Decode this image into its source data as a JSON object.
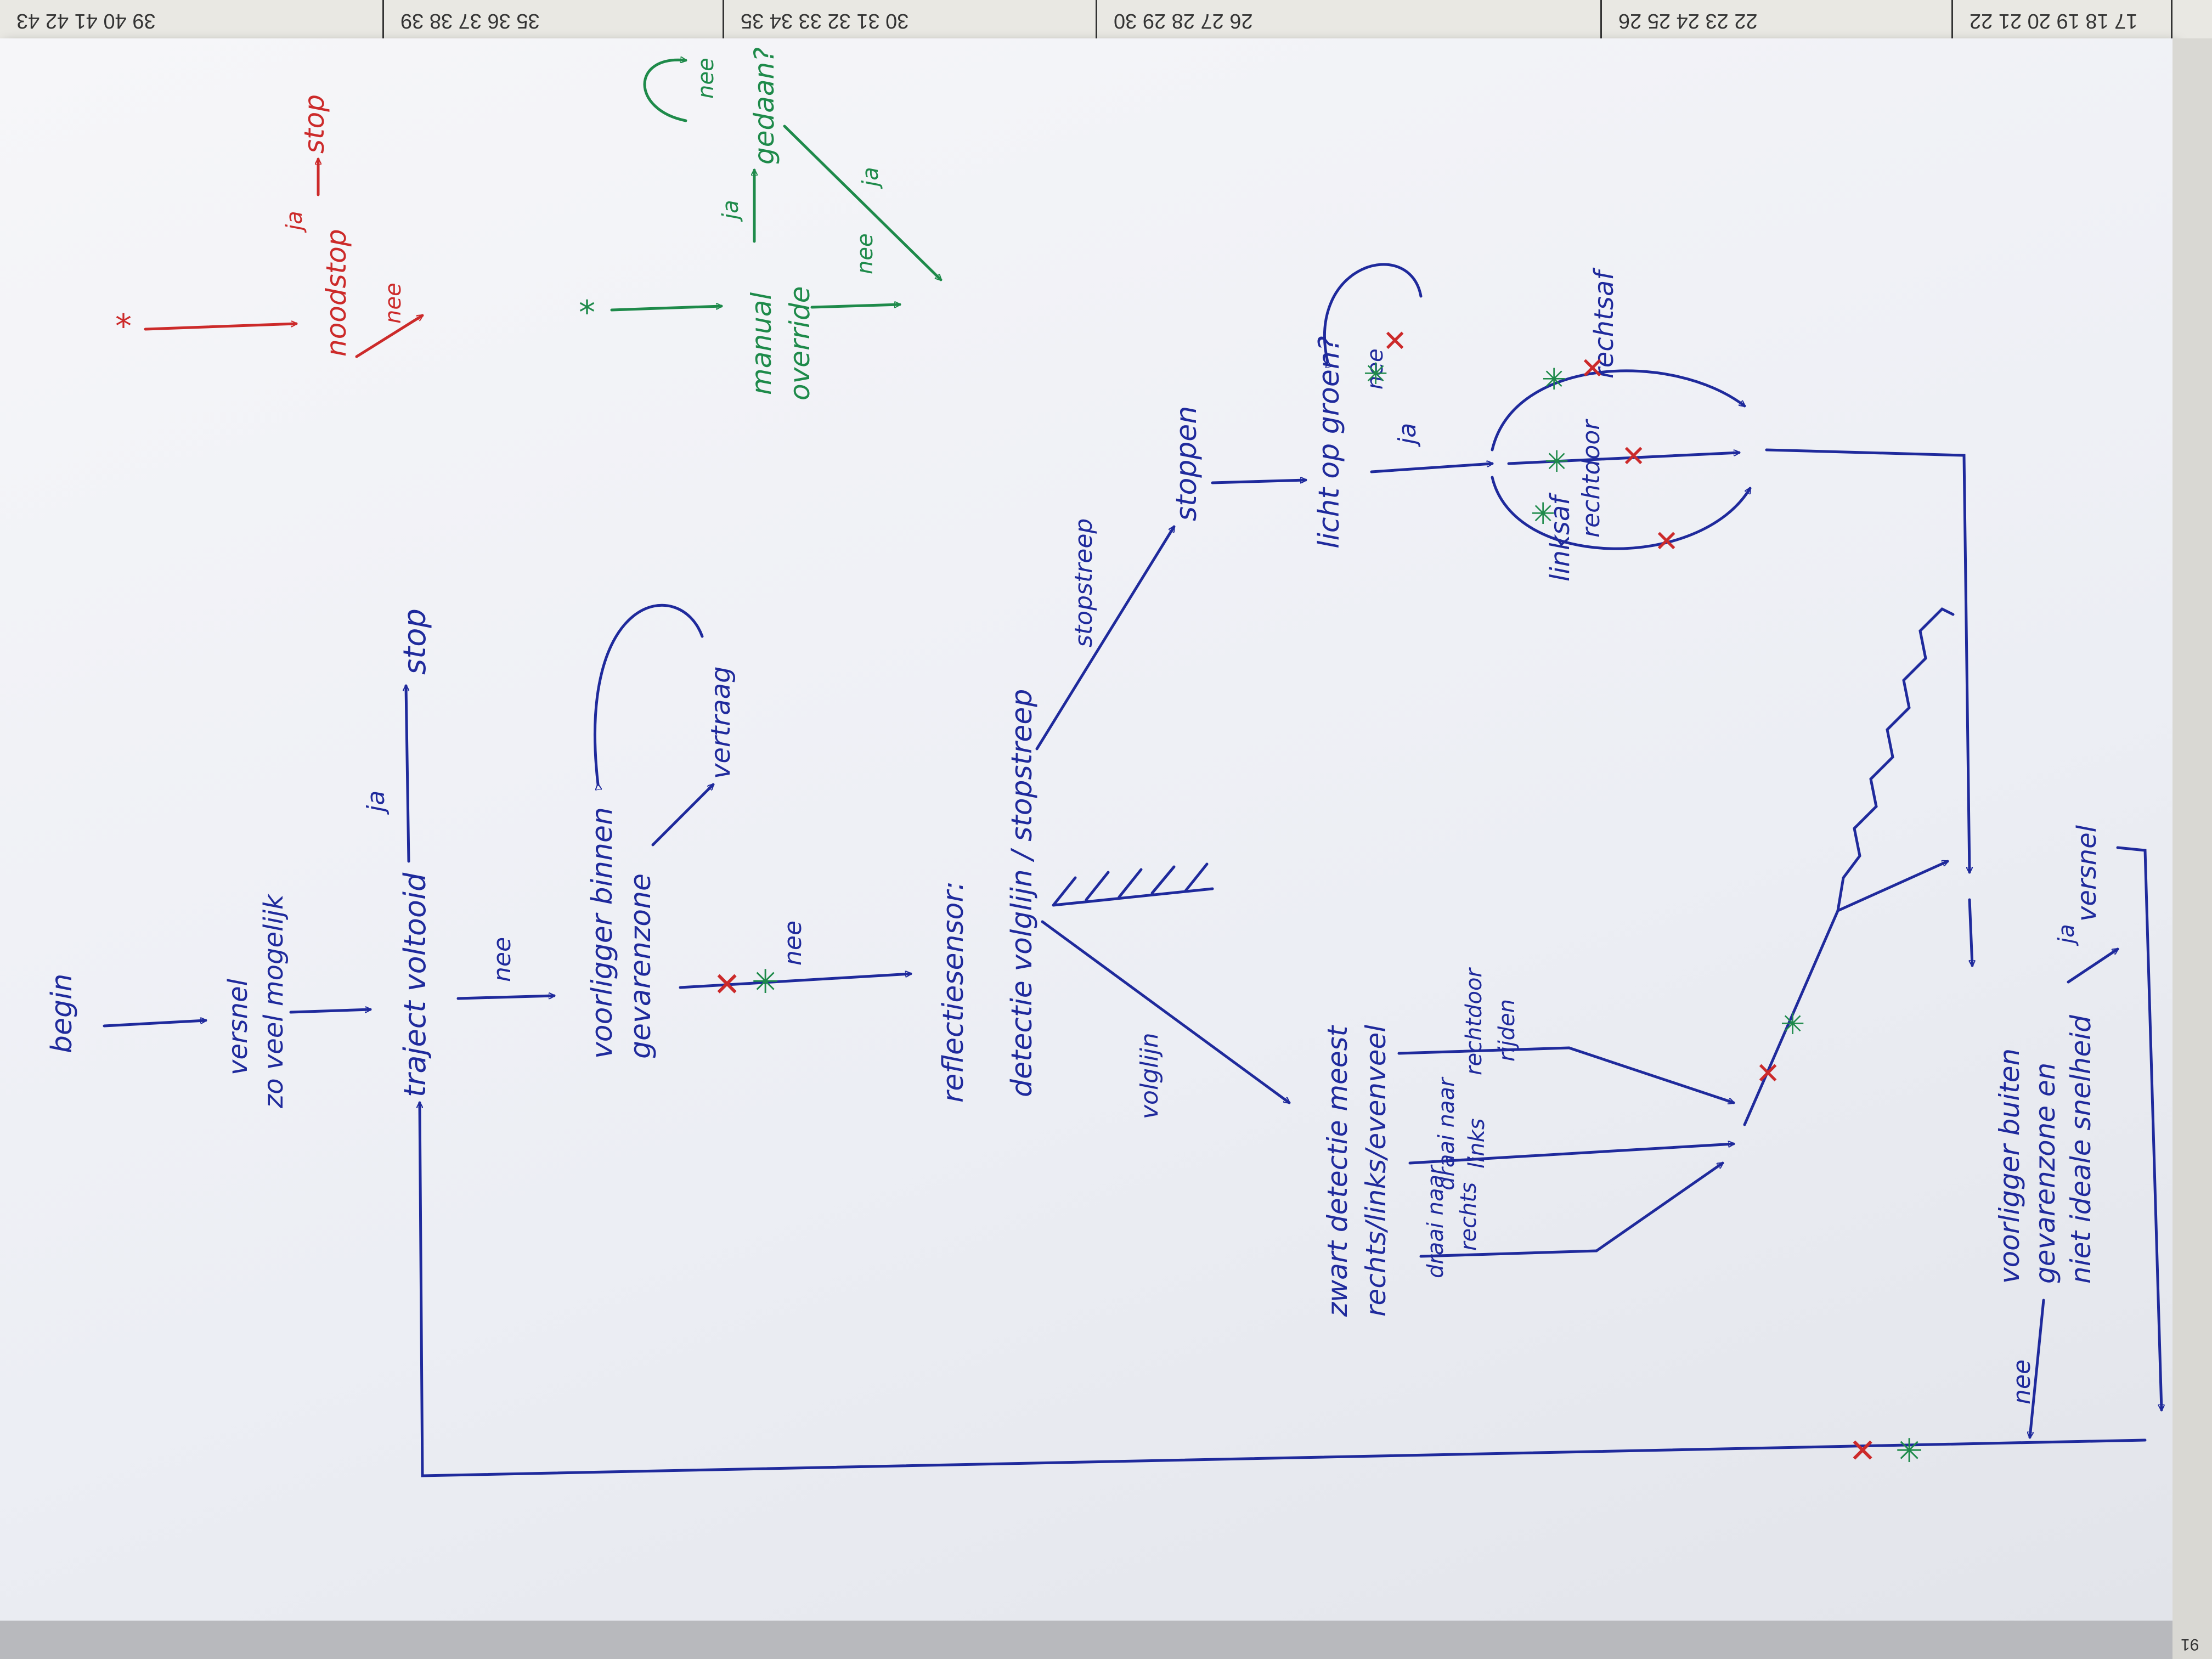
{
  "calendar": {
    "cells": [
      "17 18 19 20 21 22",
      "22 23 24 25 26",
      "26 27 28 29 30",
      "30 31 32 33 34 35",
      "35 36 37 38 39",
      "39 40 41 42 43"
    ],
    "side_label": "91"
  },
  "legend_red": {
    "start": "*",
    "noodstop": "noodstop",
    "ja": "ja",
    "nee": "nee",
    "stop": "stop"
  },
  "legend_green": {
    "start": "*",
    "manual_1": "manual",
    "manual_2": "override",
    "ja": "ja",
    "gedaan": "gedaan?",
    "nee_loop": "nee",
    "ja_diag": "ja",
    "nee": "nee"
  },
  "flow": {
    "begin": "begin",
    "versnel_1": "versnel",
    "versnel_2": "zo veel mogelijk",
    "traject": "traject voltooid",
    "ja_stop": "ja",
    "stop": "stop",
    "nee_1": "nee",
    "voorligger_1": "voorligger binnen",
    "voorligger_2": "gevarenzone",
    "vertraag": "vertraag",
    "nee_2": "nee",
    "reflectie_1": "reflectiesensor:",
    "reflectie_2": "detectie volglijn / stopstreep",
    "stopstreep": "stopstreep",
    "stoppen": "stoppen",
    "licht_op_groen": "licht op groen?",
    "ja_licht": "ja",
    "nee_licht": "nee",
    "rechtsaf": "rechtsaf",
    "rechtdoor": "rechtdoor",
    "linksaf": "linksaf",
    "volglijn": "volglijn",
    "zwart_1": "zwart detectie meest",
    "zwart_2": "rechts/links/evenveel",
    "draai_rechts_1": "draai naar",
    "draai_rechts_2": "rechts",
    "draai_links_1": "draai naar",
    "draai_links_2": "links",
    "rechtdoor_rijden_1": "rechtdoor",
    "rechtdoor_rijden_2": "rijden",
    "buiten_1": "voorligger buiten",
    "buiten_2": "gevarenzone en",
    "buiten_3": "niet ideale snelheid",
    "ja_buiten": "ja",
    "versnel_end": "versnel",
    "nee_buiten": "nee"
  }
}
